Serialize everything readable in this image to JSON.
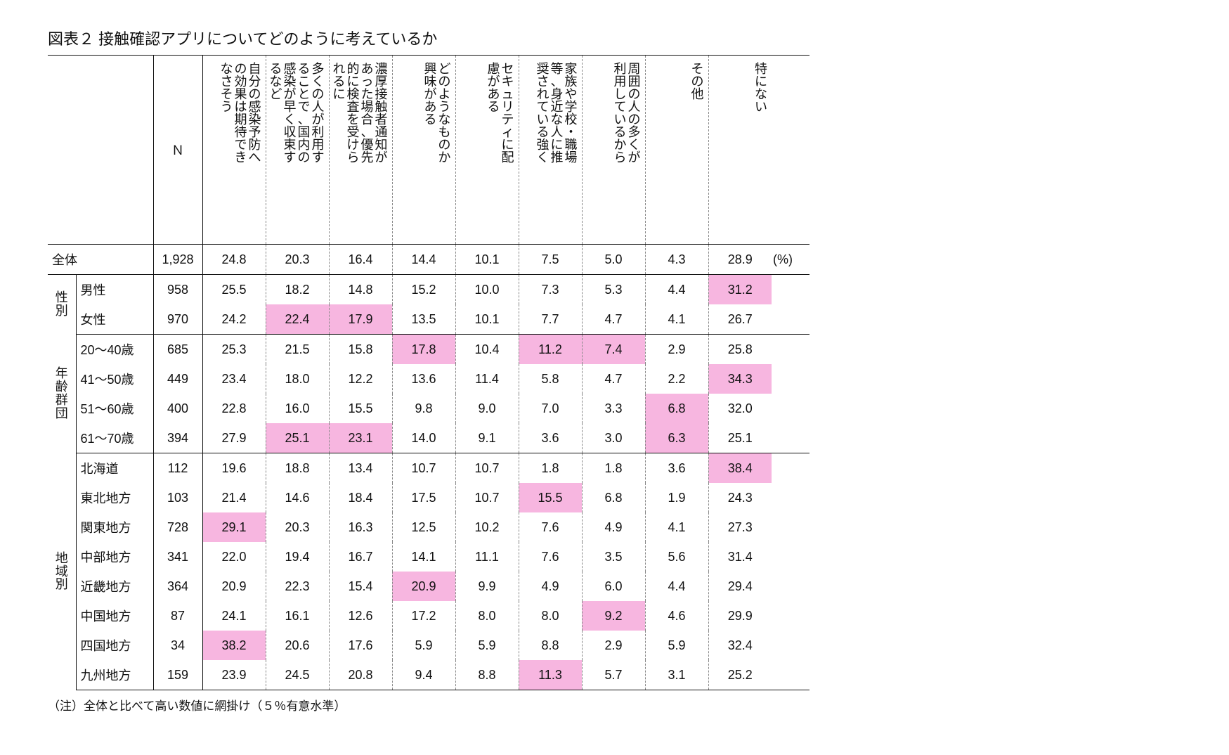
{
  "title": "図表２  接触確認アプリについてどのように考えているか",
  "unit": "(%)",
  "footnote": "（注）全体と比べて高い数値に網掛け（５％有意水準）",
  "highlight_color": "#f7b6e0",
  "columns": {
    "n_label": "Ｎ",
    "headers": [
      "自分の感染予防への効果は期待できなさそう",
      "多くの人が利用することで、国内の感染が早く収束するなど",
      "濃厚接触者通知があった場合、優先的に検査を受けられるに",
      "どのようなものか興味がある",
      "セキュリティに配慮がある",
      "家族や学校・職場等、身近な人に推奨されている強く",
      "周囲の人の多くが利用しているから",
      "その他",
      "特にない"
    ]
  },
  "table": {
    "total": {
      "label": "全体",
      "n": "1,928",
      "v": [
        "24.8",
        "20.3",
        "16.4",
        "14.4",
        "10.1",
        "7.5",
        "5.0",
        "4.3",
        "28.9"
      ],
      "hl": [
        false,
        false,
        false,
        false,
        false,
        false,
        false,
        false,
        false
      ]
    },
    "groups": [
      {
        "label": "性別",
        "rows": [
          {
            "label": "男性",
            "n": "958",
            "v": [
              "25.5",
              "18.2",
              "14.8",
              "15.2",
              "10.0",
              "7.3",
              "5.3",
              "4.4",
              "31.2"
            ],
            "hl": [
              false,
              false,
              false,
              false,
              false,
              false,
              false,
              false,
              true
            ]
          },
          {
            "label": "女性",
            "n": "970",
            "v": [
              "24.2",
              "22.4",
              "17.9",
              "13.5",
              "10.1",
              "7.7",
              "4.7",
              "4.1",
              "26.7"
            ],
            "hl": [
              false,
              true,
              true,
              false,
              false,
              false,
              false,
              false,
              false
            ]
          }
        ]
      },
      {
        "label": "年齢群団",
        "rows": [
          {
            "label": "20～40歳",
            "n": "685",
            "v": [
              "25.3",
              "21.5",
              "15.8",
              "17.8",
              "10.4",
              "11.2",
              "7.4",
              "2.9",
              "25.8"
            ],
            "hl": [
              false,
              false,
              false,
              true,
              false,
              true,
              true,
              false,
              false
            ]
          },
          {
            "label": "41～50歳",
            "n": "449",
            "v": [
              "23.4",
              "18.0",
              "12.2",
              "13.6",
              "11.4",
              "5.8",
              "4.7",
              "2.2",
              "34.3"
            ],
            "hl": [
              false,
              false,
              false,
              false,
              false,
              false,
              false,
              false,
              true
            ]
          },
          {
            "label": "51～60歳",
            "n": "400",
            "v": [
              "22.8",
              "16.0",
              "15.5",
              "9.8",
              "9.0",
              "7.0",
              "3.3",
              "6.8",
              "32.0"
            ],
            "hl": [
              false,
              false,
              false,
              false,
              false,
              false,
              false,
              true,
              false
            ]
          },
          {
            "label": "61～70歳",
            "n": "394",
            "v": [
              "27.9",
              "25.1",
              "23.1",
              "14.0",
              "9.1",
              "3.6",
              "3.0",
              "6.3",
              "25.1"
            ],
            "hl": [
              false,
              true,
              true,
              false,
              false,
              false,
              false,
              true,
              false
            ]
          }
        ]
      },
      {
        "label": "地域別",
        "rows": [
          {
            "label": "北海道",
            "n": "112",
            "v": [
              "19.6",
              "18.8",
              "13.4",
              "10.7",
              "10.7",
              "1.8",
              "1.8",
              "3.6",
              "38.4"
            ],
            "hl": [
              false,
              false,
              false,
              false,
              false,
              false,
              false,
              false,
              true
            ]
          },
          {
            "label": "東北地方",
            "n": "103",
            "v": [
              "21.4",
              "14.6",
              "18.4",
              "17.5",
              "10.7",
              "15.5",
              "6.8",
              "1.9",
              "24.3"
            ],
            "hl": [
              false,
              false,
              false,
              false,
              false,
              true,
              false,
              false,
              false
            ]
          },
          {
            "label": "関東地方",
            "n": "728",
            "v": [
              "29.1",
              "20.3",
              "16.3",
              "12.5",
              "10.2",
              "7.6",
              "4.9",
              "4.1",
              "27.3"
            ],
            "hl": [
              true,
              false,
              false,
              false,
              false,
              false,
              false,
              false,
              false
            ]
          },
          {
            "label": "中部地方",
            "n": "341",
            "v": [
              "22.0",
              "19.4",
              "16.7",
              "14.1",
              "11.1",
              "7.6",
              "3.5",
              "5.6",
              "31.4"
            ],
            "hl": [
              false,
              false,
              false,
              false,
              false,
              false,
              false,
              false,
              false
            ]
          },
          {
            "label": "近畿地方",
            "n": "364",
            "v": [
              "20.9",
              "22.3",
              "15.4",
              "20.9",
              "9.9",
              "4.9",
              "6.0",
              "4.4",
              "29.4"
            ],
            "hl": [
              false,
              false,
              false,
              true,
              false,
              false,
              false,
              false,
              false
            ]
          },
          {
            "label": "中国地方",
            "n": "87",
            "v": [
              "24.1",
              "16.1",
              "12.6",
              "17.2",
              "8.0",
              "8.0",
              "9.2",
              "4.6",
              "29.9"
            ],
            "hl": [
              false,
              false,
              false,
              false,
              false,
              false,
              true,
              false,
              false
            ]
          },
          {
            "label": "四国地方",
            "n": "34",
            "v": [
              "38.2",
              "20.6",
              "17.6",
              "5.9",
              "5.9",
              "8.8",
              "2.9",
              "5.9",
              "32.4"
            ],
            "hl": [
              true,
              false,
              false,
              false,
              false,
              false,
              false,
              false,
              false
            ]
          },
          {
            "label": "九州地方",
            "n": "159",
            "v": [
              "23.9",
              "24.5",
              "20.8",
              "9.4",
              "8.8",
              "11.3",
              "5.7",
              "3.1",
              "25.2"
            ],
            "hl": [
              false,
              false,
              false,
              false,
              false,
              true,
              false,
              false,
              false
            ]
          }
        ]
      }
    ]
  }
}
